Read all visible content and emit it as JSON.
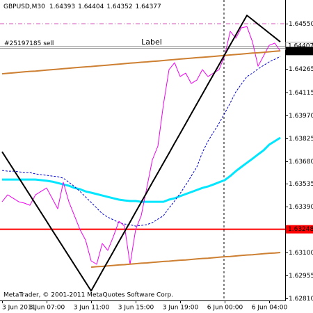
{
  "chart_data": {
    "type": "line",
    "title": "GBPUSD,M30",
    "ohlc": [
      1.64393,
      1.64404,
      1.64352,
      1.64377
    ],
    "footer": "MetaTrader, © 2001-2011 MetaQuotes Software Corp.",
    "text_objects": [
      {
        "text": "Label",
        "color": "#a0a0a0"
      }
    ],
    "categories": [
      "3 Jun 2011",
      null,
      null,
      null,
      null,
      null,
      null,
      null,
      "3 Jun 07:00",
      null,
      null,
      null,
      null,
      null,
      null,
      null,
      "3 Jun 11:00",
      null,
      null,
      null,
      null,
      null,
      null,
      null,
      "3 Jun 15:00",
      null,
      null,
      null,
      null,
      null,
      null,
      null,
      "3 Jun 19:00",
      null,
      null,
      null,
      null,
      null,
      null,
      null,
      "6 Jun 00:00",
      null,
      null,
      null,
      null,
      null,
      null,
      null,
      "6 Jun 04:00",
      null,
      null
    ],
    "ylim": [
      1.62797,
      1.64687
    ],
    "yticks": [
      {
        "value": 1.6455,
        "label": "1.64550"
      },
      1.64265,
      1.64115,
      {
        "value": 1.6397,
        "label": "1.63970"
      },
      1.63825,
      {
        "value": 1.6368,
        "label": "1.63680"
      },
      1.63535,
      {
        "value": 1.6339,
        "label": "1.63390"
      },
      {
        "value": 1.631,
        "label": "1.63100"
      },
      1.62955,
      {
        "value": 1.6281,
        "label": "1.62810"
      }
    ],
    "levels": [
      {
        "value": 1.6455,
        "color": "#d040b0",
        "dash": "dashdot",
        "width": 1
      },
      {
        "value": 1.63248,
        "color": "#ff0000",
        "width": 2,
        "price_tag": true
      }
    ],
    "order": {
      "text": "#25197185 sell",
      "value": 1.64407,
      "color": "#a0a0a0"
    },
    "bid": {
      "value": 1.64377,
      "color": "#000000"
    },
    "series": [
      {
        "color": "#00e6ff",
        "width": 3,
        "dash": "solid",
        "values": [
          1.63563,
          1.63563,
          1.63563,
          1.63563,
          1.63563,
          1.63563,
          1.63563,
          1.63559,
          1.63555,
          1.6355,
          1.63541,
          1.63532,
          1.63524,
          1.6351,
          1.63502,
          1.63488,
          1.6348,
          1.63471,
          1.63462,
          1.63453,
          1.63444,
          1.63436,
          1.63431,
          1.63427,
          1.63427,
          1.63422,
          1.63422,
          1.63422,
          1.63422,
          1.63422,
          1.63436,
          1.63444,
          1.63458,
          1.63471,
          1.63484,
          1.63497,
          1.6351,
          1.63519,
          1.63532,
          1.63546,
          1.63559,
          1.63585,
          1.63616,
          1.63643,
          1.63669,
          1.63695,
          1.63722,
          1.63748,
          1.63784,
          1.63806,
          1.63828
        ]
      },
      {
        "color": "#0000cc",
        "width": 1,
        "dash": "dashed",
        "values": [
          1.63621,
          1.63616,
          1.63616,
          1.63612,
          1.63607,
          1.63607,
          1.63599,
          1.63594,
          1.6359,
          1.63585,
          1.63581,
          1.63572,
          1.63546,
          1.63519,
          1.63488,
          1.63453,
          1.63418,
          1.63383,
          1.63347,
          1.63325,
          1.63308,
          1.6329,
          1.63281,
          1.63277,
          1.63268,
          1.63273,
          1.63277,
          1.6329,
          1.63312,
          1.63334,
          1.63383,
          1.63427,
          1.63475,
          1.63528,
          1.63585,
          1.63643,
          1.63735,
          1.63806,
          1.63863,
          1.6392,
          1.63982,
          1.64048,
          1.64118,
          1.64167,
          1.64215,
          1.64237,
          1.64264,
          1.64286,
          1.64308,
          1.64325,
          1.64343
        ]
      },
      {
        "color": "#ee00ee",
        "width": 1,
        "dash": "solid",
        "values": [
          1.63422,
          1.63466,
          1.63444,
          1.63422,
          1.63414,
          1.634,
          1.63466,
          1.63488,
          1.6351,
          1.63444,
          1.63378,
          1.63546,
          1.63422,
          1.63334,
          1.63246,
          1.6318,
          1.63048,
          1.63026,
          1.63158,
          1.63114,
          1.63202,
          1.63299,
          1.63268,
          1.63026,
          1.63246,
          1.63334,
          1.6351,
          1.63687,
          1.63775,
          1.64039,
          1.64259,
          1.64303,
          1.64215,
          1.64237,
          1.64171,
          1.64193,
          1.64259,
          1.64215,
          1.64237,
          1.64259,
          1.64347,
          1.64502,
          1.64458,
          1.64524,
          1.64532,
          1.64435,
          1.64281,
          1.64347,
          1.64413,
          1.64427,
          1.64377
        ]
      },
      {
        "color": "#cd7f32",
        "width": 2,
        "dash": "solid",
        "values": [
          1.64233,
          1.64236,
          1.64239,
          1.64242,
          1.64245,
          1.64248,
          1.6425,
          1.64253,
          1.64256,
          1.64259,
          1.64262,
          1.64265,
          1.64268,
          1.64271,
          1.64274,
          1.64277,
          1.64279,
          1.64282,
          1.64285,
          1.64288,
          1.64291,
          1.64294,
          1.64297,
          1.643,
          1.64303,
          1.64306,
          1.64308,
          1.64311,
          1.64314,
          1.64317,
          1.6432,
          1.64323,
          1.64326,
          1.64329,
          1.64332,
          1.64335,
          1.64337,
          1.6434,
          1.64343,
          1.64346,
          1.64349,
          1.64352,
          1.64355,
          1.64358,
          1.64361,
          1.64364,
          1.64366,
          1.64369,
          1.64372,
          1.64375,
          1.64378
        ]
      },
      {
        "color": "#cd7f32",
        "width": 2,
        "dash": "solid",
        "values": [
          null,
          null,
          null,
          null,
          null,
          null,
          null,
          null,
          null,
          null,
          null,
          null,
          null,
          null,
          null,
          null,
          1.63008,
          1.63011,
          1.63013,
          1.63016,
          1.63019,
          1.63022,
          1.63024,
          1.63027,
          1.6303,
          1.63033,
          1.63035,
          1.63038,
          1.63041,
          1.63044,
          1.63046,
          1.63049,
          1.63052,
          1.63054,
          1.63057,
          1.6306,
          1.63063,
          1.63065,
          1.63068,
          1.63071,
          1.63074,
          1.63076,
          1.63079,
          1.63082,
          1.63085,
          1.63087,
          1.6309,
          1.63093,
          1.63096,
          1.63098,
          1.63101
        ]
      },
      {
        "color": "#000000",
        "width": 2,
        "dash": "solid",
        "values": [
          1.63739,
          1.63684,
          1.63629,
          1.63574,
          1.63519,
          1.63464,
          1.63409,
          1.63354,
          1.63299,
          1.63243,
          1.63188,
          1.63133,
          1.63078,
          1.63023,
          1.62968,
          1.62913,
          1.62858,
          1.6292,
          1.62983,
          1.63045,
          1.63107,
          1.6317,
          1.63232,
          1.63294,
          1.63357,
          1.63419,
          1.63481,
          1.63544,
          1.63606,
          1.63668,
          1.6373,
          1.63793,
          1.63855,
          1.63917,
          1.6398,
          1.64042,
          1.64104,
          1.64167,
          1.64229,
          1.64291,
          1.64354,
          1.64416,
          1.64478,
          1.64541,
          1.64603,
          1.64575,
          1.64547,
          1.64519,
          1.64491,
          1.64463,
          1.64435
        ]
      }
    ]
  }
}
